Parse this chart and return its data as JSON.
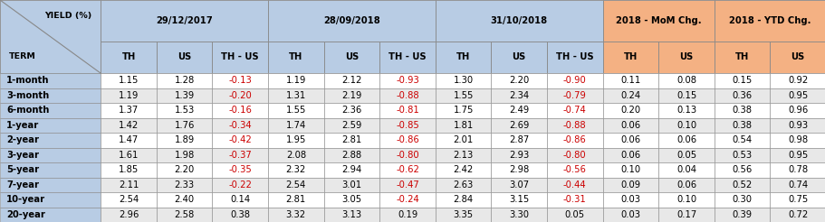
{
  "terms": [
    "1-month",
    "3-month",
    "6-month",
    "1-year",
    "2-year",
    "3-year",
    "5-year",
    "7-year",
    "10-year",
    "20-year"
  ],
  "data": [
    [
      1.15,
      1.28,
      -0.13,
      1.19,
      2.12,
      -0.93,
      1.3,
      2.2,
      -0.9,
      0.11,
      0.08,
      0.15,
      0.92
    ],
    [
      1.19,
      1.39,
      -0.2,
      1.31,
      2.19,
      -0.88,
      1.55,
      2.34,
      -0.79,
      0.24,
      0.15,
      0.36,
      0.95
    ],
    [
      1.37,
      1.53,
      -0.16,
      1.55,
      2.36,
      -0.81,
      1.75,
      2.49,
      -0.74,
      0.2,
      0.13,
      0.38,
      0.96
    ],
    [
      1.42,
      1.76,
      -0.34,
      1.74,
      2.59,
      -0.85,
      1.81,
      2.69,
      -0.88,
      0.06,
      0.1,
      0.38,
      0.93
    ],
    [
      1.47,
      1.89,
      -0.42,
      1.95,
      2.81,
      -0.86,
      2.01,
      2.87,
      -0.86,
      0.06,
      0.06,
      0.54,
      0.98
    ],
    [
      1.61,
      1.98,
      -0.37,
      2.08,
      2.88,
      -0.8,
      2.13,
      2.93,
      -0.8,
      0.06,
      0.05,
      0.53,
      0.95
    ],
    [
      1.85,
      2.2,
      -0.35,
      2.32,
      2.94,
      -0.62,
      2.42,
      2.98,
      -0.56,
      0.1,
      0.04,
      0.56,
      0.78
    ],
    [
      2.11,
      2.33,
      -0.22,
      2.54,
      3.01,
      -0.47,
      2.63,
      3.07,
      -0.44,
      0.09,
      0.06,
      0.52,
      0.74
    ],
    [
      2.54,
      2.4,
      0.14,
      2.81,
      3.05,
      -0.24,
      2.84,
      3.15,
      -0.31,
      0.03,
      0.1,
      0.3,
      0.75
    ],
    [
      2.96,
      2.58,
      0.38,
      3.32,
      3.13,
      0.19,
      3.35,
      3.3,
      0.05,
      0.03,
      0.17,
      0.39,
      0.72
    ]
  ],
  "header_bg_blue": "#b8cce4",
  "header_bg_orange": "#f4b183",
  "row_bg_odd": "#ffffff",
  "row_bg_even": "#e8e8e8",
  "term_col_bg": "#b8cce4",
  "text_black": "#000000",
  "text_red": "#cc0000",
  "border_color": "#888888",
  "figsize": [
    9.12,
    2.46
  ],
  "dpi": 100,
  "group_headers": [
    "29/12/2017",
    "28/09/2018",
    "31/10/2018",
    "2018 - MoM Chg.",
    "2018 - YTD Chg."
  ],
  "sub_headers": [
    "TH",
    "US",
    "TH - US",
    "TH",
    "US",
    "TH - US",
    "TH",
    "US",
    "TH - US",
    "TH",
    "US",
    "TH",
    "US"
  ],
  "th_us_indices": [
    2,
    5,
    8
  ]
}
